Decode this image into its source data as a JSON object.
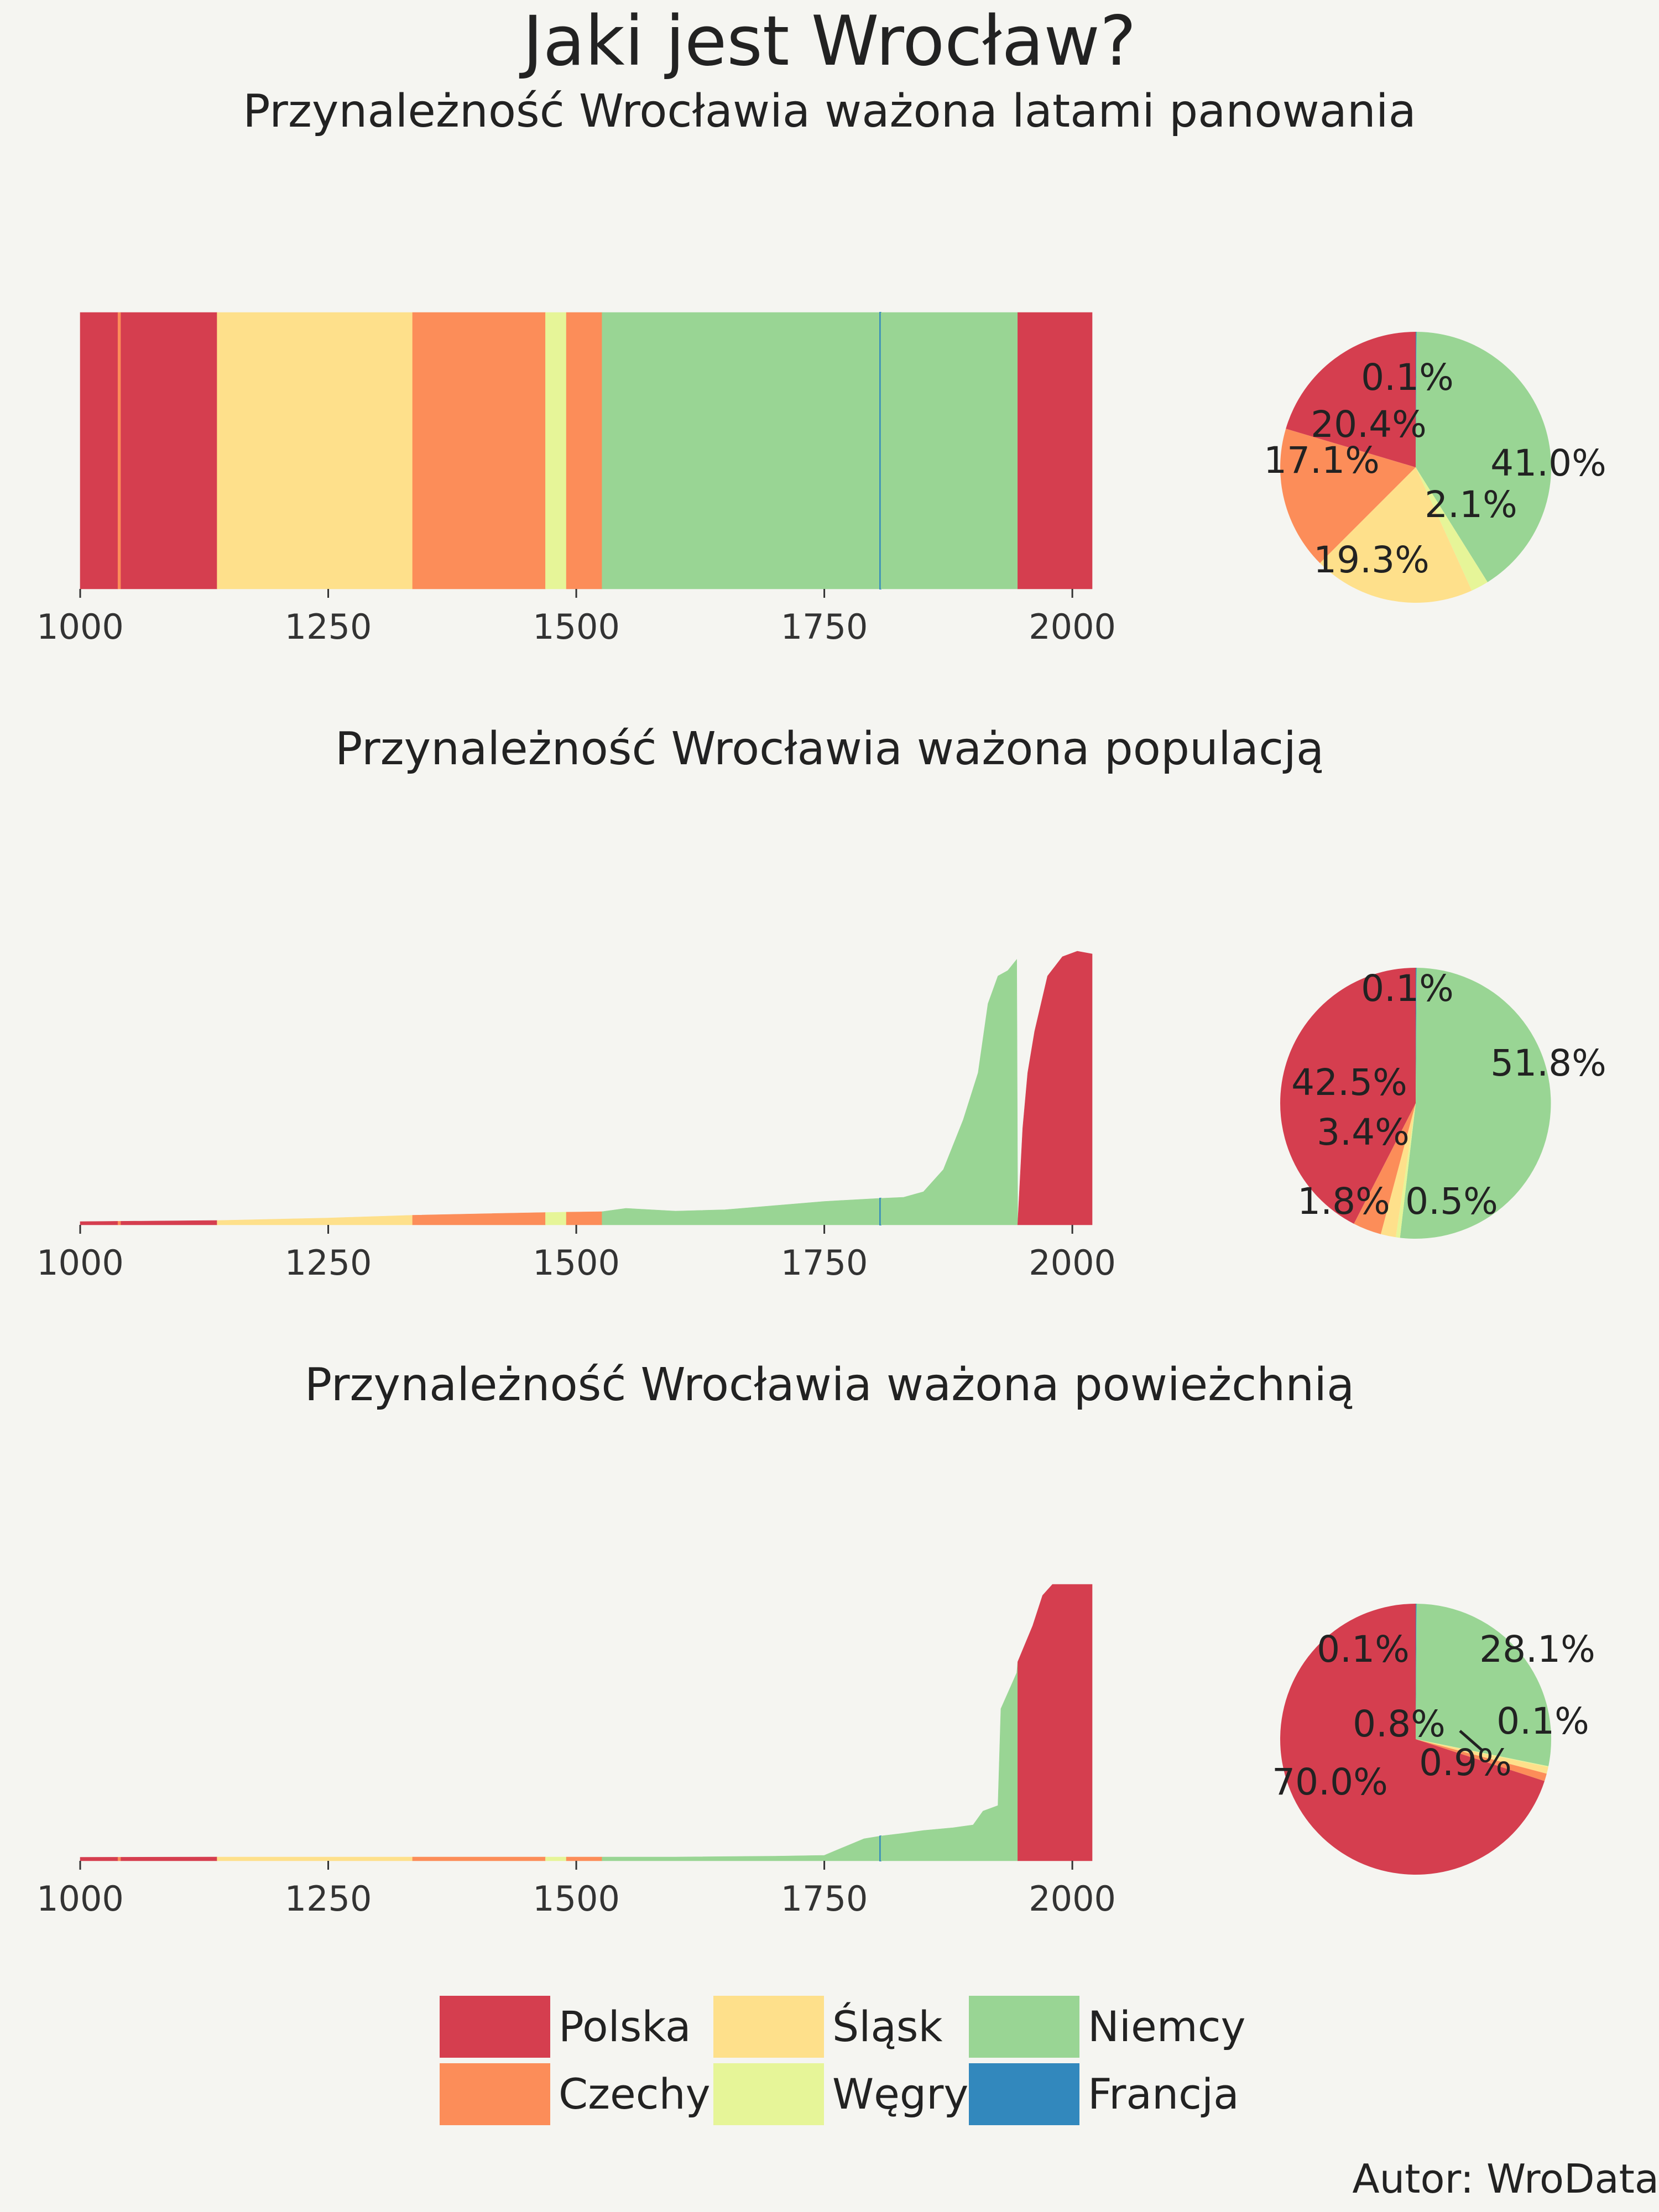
{
  "title": "Jaki jest Wrocław?",
  "author": "Autor: WroData",
  "colors": {
    "Polska": "#d53e4f",
    "Czechy": "#fc8d59",
    "Śląsk": "#fee08b",
    "Węgry": "#e6f598",
    "Niemcy": "#99d594",
    "Francja": "#3288bd"
  },
  "legend": [
    {
      "label": "Polska",
      "color": "#d53e4f"
    },
    {
      "label": "Czechy",
      "color": "#fc8d59"
    },
    {
      "label": "Śląsk",
      "color": "#fee08b"
    },
    {
      "label": "Węgry",
      "color": "#e6f598"
    },
    {
      "label": "Niemcy",
      "color": "#99d594"
    },
    {
      "label": "Francja",
      "color": "#3288bd"
    }
  ],
  "chart_data": [
    {
      "type": "area",
      "title": "Przynależność Wrocławia ważona latami panowania",
      "xlim": [
        1000,
        2020
      ],
      "x_ticks": [
        1000,
        1250,
        1500,
        1750,
        2000
      ],
      "periods": [
        {
          "from": 1000,
          "to": 1038,
          "country": "Polska"
        },
        {
          "from": 1038,
          "to": 1041,
          "country": "Czechy"
        },
        {
          "from": 1041,
          "to": 1138,
          "country": "Polska"
        },
        {
          "from": 1138,
          "to": 1335,
          "country": "Śląsk"
        },
        {
          "from": 1335,
          "to": 1469,
          "country": "Czechy"
        },
        {
          "from": 1469,
          "to": 1490,
          "country": "Węgry"
        },
        {
          "from": 1490,
          "to": 1526,
          "country": "Czechy"
        },
        {
          "from": 1526,
          "to": 1806,
          "country": "Niemcy"
        },
        {
          "from": 1806,
          "to": 1807,
          "country": "Francja"
        },
        {
          "from": 1807,
          "to": 1945,
          "country": "Niemcy"
        },
        {
          "from": 1945,
          "to": 2020,
          "country": "Polska"
        }
      ],
      "profile": [
        [
          1000,
          1
        ],
        [
          2020,
          1
        ]
      ]
    },
    {
      "type": "area",
      "title": "Przynależność Wrocławia ważona populacją",
      "xlim": [
        1000,
        2020
      ],
      "x_ticks": [
        1000,
        1250,
        1500,
        1750,
        2000
      ],
      "periods": [
        {
          "from": 1000,
          "to": 1038,
          "country": "Polska"
        },
        {
          "from": 1038,
          "to": 1041,
          "country": "Czechy"
        },
        {
          "from": 1041,
          "to": 1138,
          "country": "Polska"
        },
        {
          "from": 1138,
          "to": 1335,
          "country": "Śląsk"
        },
        {
          "from": 1335,
          "to": 1469,
          "country": "Czechy"
        },
        {
          "from": 1469,
          "to": 1490,
          "country": "Węgry"
        },
        {
          "from": 1490,
          "to": 1526,
          "country": "Czechy"
        },
        {
          "from": 1526,
          "to": 1806,
          "country": "Niemcy"
        },
        {
          "from": 1806,
          "to": 1807,
          "country": "Francja"
        },
        {
          "from": 1807,
          "to": 1945,
          "country": "Niemcy"
        },
        {
          "from": 1945,
          "to": 2020,
          "country": "Polska"
        }
      ],
      "profile": [
        [
          1000,
          0.012
        ],
        [
          1138,
          0.016
        ],
        [
          1250,
          0.025
        ],
        [
          1335,
          0.035
        ],
        [
          1400,
          0.04
        ],
        [
          1469,
          0.045
        ],
        [
          1526,
          0.048
        ],
        [
          1550,
          0.06
        ],
        [
          1600,
          0.05
        ],
        [
          1650,
          0.055
        ],
        [
          1700,
          0.07
        ],
        [
          1750,
          0.085
        ],
        [
          1800,
          0.095
        ],
        [
          1830,
          0.1
        ],
        [
          1850,
          0.12
        ],
        [
          1870,
          0.2
        ],
        [
          1890,
          0.38
        ],
        [
          1905,
          0.55
        ],
        [
          1915,
          0.8
        ],
        [
          1925,
          0.9
        ],
        [
          1935,
          0.92
        ],
        [
          1944,
          0.96
        ],
        [
          1945,
          0.004
        ],
        [
          1950,
          0.35
        ],
        [
          1955,
          0.55
        ],
        [
          1962,
          0.7
        ],
        [
          1975,
          0.9
        ],
        [
          1990,
          0.97
        ],
        [
          2005,
          0.99
        ],
        [
          2020,
          0.98
        ]
      ]
    },
    {
      "type": "area",
      "title": "Przynależność Wrocławia ważona powieżchnią",
      "xlim": [
        1000,
        2020
      ],
      "x_ticks": [
        1000,
        1250,
        1500,
        1750,
        2000
      ],
      "periods": [
        {
          "from": 1000,
          "to": 1038,
          "country": "Polska"
        },
        {
          "from": 1038,
          "to": 1041,
          "country": "Czechy"
        },
        {
          "from": 1041,
          "to": 1138,
          "country": "Polska"
        },
        {
          "from": 1138,
          "to": 1335,
          "country": "Śląsk"
        },
        {
          "from": 1335,
          "to": 1469,
          "country": "Czechy"
        },
        {
          "from": 1469,
          "to": 1490,
          "country": "Węgry"
        },
        {
          "from": 1490,
          "to": 1526,
          "country": "Czechy"
        },
        {
          "from": 1526,
          "to": 1806,
          "country": "Niemcy"
        },
        {
          "from": 1806,
          "to": 1807,
          "country": "Francja"
        },
        {
          "from": 1807,
          "to": 1945,
          "country": "Niemcy"
        },
        {
          "from": 1945,
          "to": 2020,
          "country": "Polska"
        }
      ],
      "profile": [
        [
          1000,
          0.013
        ],
        [
          1138,
          0.014
        ],
        [
          1250,
          0.014
        ],
        [
          1526,
          0.014
        ],
        [
          1600,
          0.014
        ],
        [
          1700,
          0.017
        ],
        [
          1750,
          0.02
        ],
        [
          1770,
          0.05
        ],
        [
          1790,
          0.08
        ],
        [
          1807,
          0.09
        ],
        [
          1830,
          0.1
        ],
        [
          1850,
          0.11
        ],
        [
          1880,
          0.12
        ],
        [
          1900,
          0.13
        ],
        [
          1910,
          0.18
        ],
        [
          1925,
          0.2
        ],
        [
          1928,
          0.55
        ],
        [
          1944,
          0.68
        ],
        [
          1945,
          0.72
        ],
        [
          1960,
          0.85
        ],
        [
          1970,
          0.96
        ],
        [
          1980,
          1.0
        ],
        [
          2020,
          1.0
        ]
      ]
    },
    {
      "type": "pie",
      "title": "",
      "slices": [
        {
          "label": "Polska",
          "value": 20.4,
          "text": "20.4%"
        },
        {
          "label": "Czechy",
          "value": 17.1,
          "text": "17.1%"
        },
        {
          "label": "Śląsk",
          "value": 19.3,
          "text": "19.3%"
        },
        {
          "label": "Węgry",
          "value": 2.1,
          "text": "2.1%"
        },
        {
          "label": "Niemcy",
          "value": 41.0,
          "text": "41.0%"
        },
        {
          "label": "Francja",
          "value": 0.1,
          "text": "0.1%"
        }
      ]
    },
    {
      "type": "pie",
      "title": "",
      "slices": [
        {
          "label": "Polska",
          "value": 42.5,
          "text": "42.5%"
        },
        {
          "label": "Czechy",
          "value": 3.4,
          "text": "3.4%"
        },
        {
          "label": "Śląsk",
          "value": 1.8,
          "text": "1.8%"
        },
        {
          "label": "Węgry",
          "value": 0.5,
          "text": "0.5%"
        },
        {
          "label": "Niemcy",
          "value": 51.8,
          "text": "51.8%"
        },
        {
          "label": "Francja",
          "value": 0.1,
          "text": "0.1%"
        }
      ]
    },
    {
      "type": "pie",
      "title": "",
      "slices": [
        {
          "label": "Polska",
          "value": 70.0,
          "text": "70.0%"
        },
        {
          "label": "Czechy",
          "value": 0.9,
          "text": "0.9%"
        },
        {
          "label": "Śląsk",
          "value": 0.8,
          "text": "0.8%"
        },
        {
          "label": "Węgry",
          "value": 0.1,
          "text": "0.1%"
        },
        {
          "label": "Niemcy",
          "value": 28.1,
          "text": "28.1%"
        },
        {
          "label": "Francja",
          "value": 0.1,
          "text": "0.1%"
        }
      ]
    }
  ]
}
